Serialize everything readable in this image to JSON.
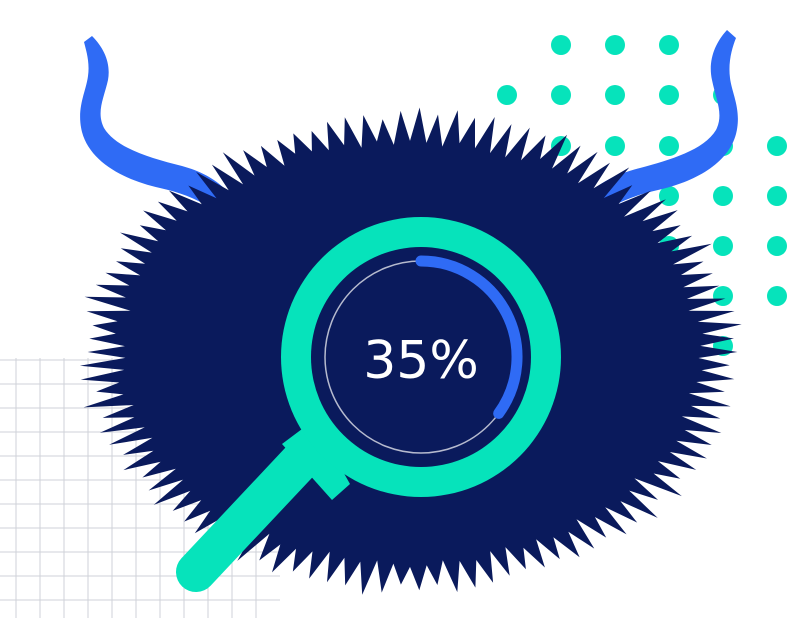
{
  "progress": {
    "label": "35%",
    "fraction": 0.35
  },
  "colors": {
    "background": "#ffffff",
    "monster_body": "#0a1a5c",
    "horns": "#2f6bf5",
    "accent_teal": "#06e3bb",
    "progress_arc": "#2f6bf5",
    "track_ring": "#ffffff",
    "grid_lines": "#cfd2d8",
    "text": "#ffffff"
  },
  "icons": [
    "furry-monster-icon",
    "horn-icon",
    "magnifying-glass-icon",
    "dot-pattern",
    "grid-pattern"
  ]
}
